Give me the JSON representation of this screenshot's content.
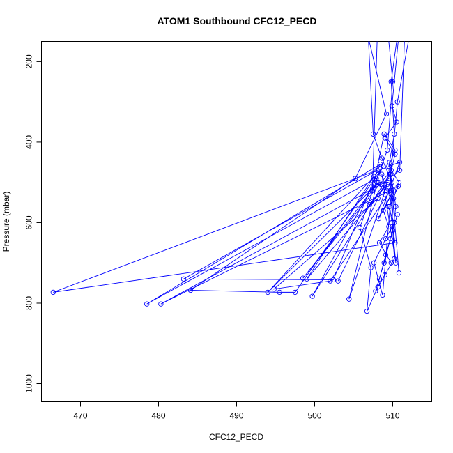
{
  "chart_data": {
    "type": "line",
    "title": "ATOM1 Southbound CFC12_PECD",
    "xlabel": "CFC12_PECD",
    "ylabel": "Pressure (mbar)",
    "xlim": [
      465,
      515
    ],
    "ylim": [
      1045,
      150
    ],
    "y_reversed": true,
    "grid": false,
    "series_color": "#0000ff",
    "marker": "open-circle",
    "x_ticks": [
      470,
      480,
      490,
      500,
      510
    ],
    "y_ticks": [
      200,
      400,
      600,
      800,
      1000
    ],
    "series": [
      {
        "x": [
          510.5,
          509.8,
          510.2,
          509.5,
          510.8,
          510.1,
          509.9,
          510.4,
          508.6,
          509.2,
          510.7,
          509.6,
          510.3,
          466.5,
          508.0,
          483.2,
          502.4,
          508.4,
          478.5,
          507.9,
          509.0
        ],
        "y": [
          150,
          250,
          380,
          460,
          500,
          540,
          600,
          700,
          480,
          520,
          510,
          560,
          650,
          773,
          470,
          740,
          742,
          455,
          802,
          490,
          530
        ]
      },
      {
        "x": [
          511.5,
          510.9,
          508.5,
          480.3,
          509.7,
          502.0,
          494.8,
          508.1,
          507.0,
          509.4
        ],
        "y": [
          150,
          470,
          505,
          802,
          520,
          745,
          765,
          540,
          555,
          500
        ]
      },
      {
        "x": [
          507.0,
          509.2,
          505.2,
          484.1,
          495.5,
          497.5,
          508.8,
          499.7,
          509.6,
          503.0
        ],
        "y": [
          150,
          330,
          490,
          768,
          773,
          773,
          460,
          783,
          480,
          745
        ]
      },
      {
        "x": [
          512.0,
          510.6,
          509.8,
          498.5,
          508.2,
          494.0,
          507.6,
          499.0,
          509.3,
          504.4,
          508.0
        ],
        "y": [
          150,
          300,
          470,
          738,
          500,
          773,
          485,
          740,
          505,
          790,
          500
        ]
      },
      {
        "x": [
          509.5,
          510.0,
          509.3,
          505.8,
          507.2,
          506.7,
          508.1,
          509.0,
          510.2,
          509.6,
          510.8
        ],
        "y": [
          150,
          250,
          420,
          612,
          712,
          820,
          760,
          730,
          690,
          450,
          725
        ]
      },
      {
        "x": [
          506.9,
          507.5,
          508.6,
          509.9,
          510.4,
          510.0,
          509.1,
          508.3,
          507.8,
          508.9,
          509.7,
          510.6
        ],
        "y": [
          150,
          380,
          440,
          500,
          560,
          620,
          680,
          740,
          770,
          700,
          640,
          580
        ]
      },
      {
        "x": [
          508.0,
          507.4,
          508.9,
          510.3,
          509.5,
          510.9,
          508.2,
          509.8,
          508.7,
          507.6,
          509.1,
          510.2,
          509.4
        ],
        "y": [
          150,
          520,
          380,
          420,
          460,
          450,
          590,
          530,
          780,
          700,
          640,
          600,
          560
        ]
      },
      {
        "x": [
          510.7,
          509.9,
          510.5,
          509.0,
          510.3,
          509.7,
          510.1,
          508.8,
          509.5,
          508.3,
          509.8
        ],
        "y": [
          150,
          310,
          350,
          390,
          430,
          480,
          520,
          570,
          610,
          650,
          700
        ]
      }
    ]
  }
}
